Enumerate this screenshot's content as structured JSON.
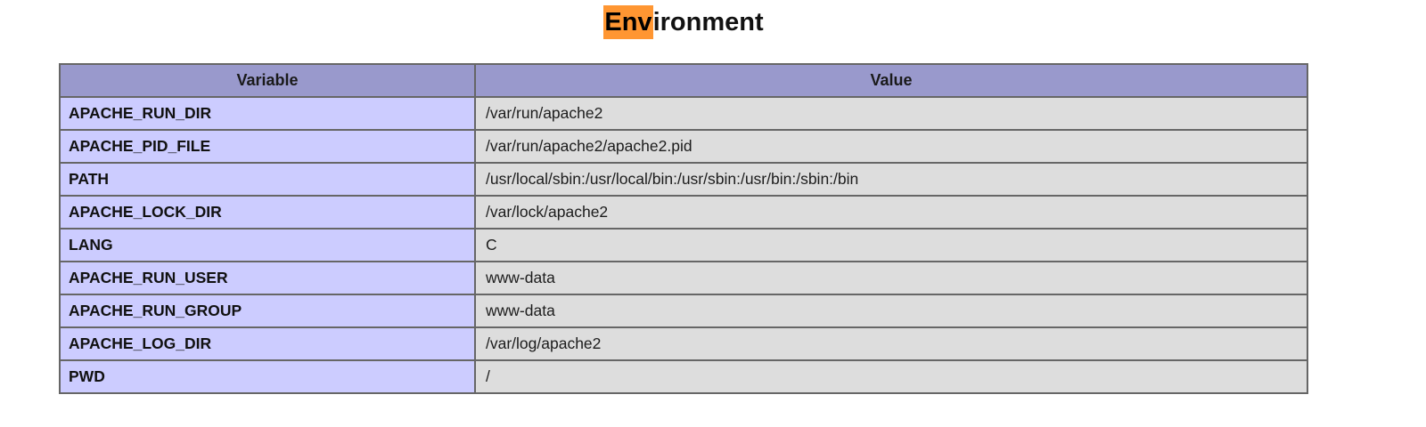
{
  "page": {
    "background": "#ffffff"
  },
  "title": {
    "text": "Environment",
    "highlighted_text": "Env",
    "rest_text": "ironment",
    "highlight_color": "#ff9632"
  },
  "table": {
    "headers": [
      "Variable",
      "Value"
    ],
    "rows": [
      {
        "variable": "APACHE_RUN_DIR",
        "value": "/var/run/apache2"
      },
      {
        "variable": "APACHE_PID_FILE",
        "value": "/var/run/apache2/apache2.pid"
      },
      {
        "variable": "PATH",
        "value": "/usr/local/sbin:/usr/local/bin:/usr/sbin:/usr/bin:/sbin:/bin"
      },
      {
        "variable": "APACHE_LOCK_DIR",
        "value": "/var/lock/apache2"
      },
      {
        "variable": "LANG",
        "value": "C"
      },
      {
        "variable": "APACHE_RUN_USER",
        "value": "www-data"
      },
      {
        "variable": "APACHE_RUN_GROUP",
        "value": "www-data"
      },
      {
        "variable": "APACHE_LOG_DIR",
        "value": "/var/log/apache2"
      },
      {
        "variable": "PWD",
        "value": "/"
      }
    ],
    "colors": {
      "header_background": "#9999cc",
      "variable_cell_background": "#ccccff",
      "value_cell_background": "#dddddd",
      "border": "#666666"
    }
  }
}
